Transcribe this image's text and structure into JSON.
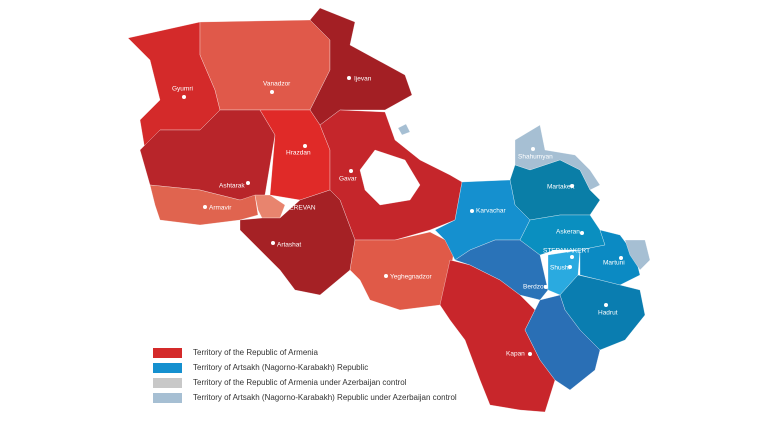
{
  "cities": [
    {
      "label": "Gyumri"
    },
    {
      "label": "Vanadzor"
    },
    {
      "label": "Ijevan"
    },
    {
      "label": "Hrazdan"
    },
    {
      "label": "Gavar"
    },
    {
      "label": "Ashtarak"
    },
    {
      "label": "Armavir"
    },
    {
      "label": "YEREVAN"
    },
    {
      "label": "Artashat"
    },
    {
      "label": "Yeghegnadzor"
    },
    {
      "label": "Kapan"
    },
    {
      "label": "Karvachar"
    },
    {
      "label": "Shahumyan"
    },
    {
      "label": "Martakert"
    },
    {
      "label": "Askeran"
    },
    {
      "label": "STEPANAKERT"
    },
    {
      "label": "Shushi"
    },
    {
      "label": "Martuni"
    },
    {
      "label": "Berdzor"
    },
    {
      "label": "Hadrut"
    }
  ],
  "legend": [
    {
      "label": "Territory of the Republic of Armenia",
      "color": "#d42a2a"
    },
    {
      "label": "Territory of Artsakh (Nagorno-Karabakh) Republic",
      "color": "#1590cf"
    },
    {
      "label": "Territory of the Republic of Armenia under Azerbaijan control",
      "color": "#c8c8c8"
    },
    {
      "label": "Territory of Artsakh (Nagorno-Karabakh) Republic under Azerbaijan control",
      "color": "#a6bfd3"
    }
  ]
}
